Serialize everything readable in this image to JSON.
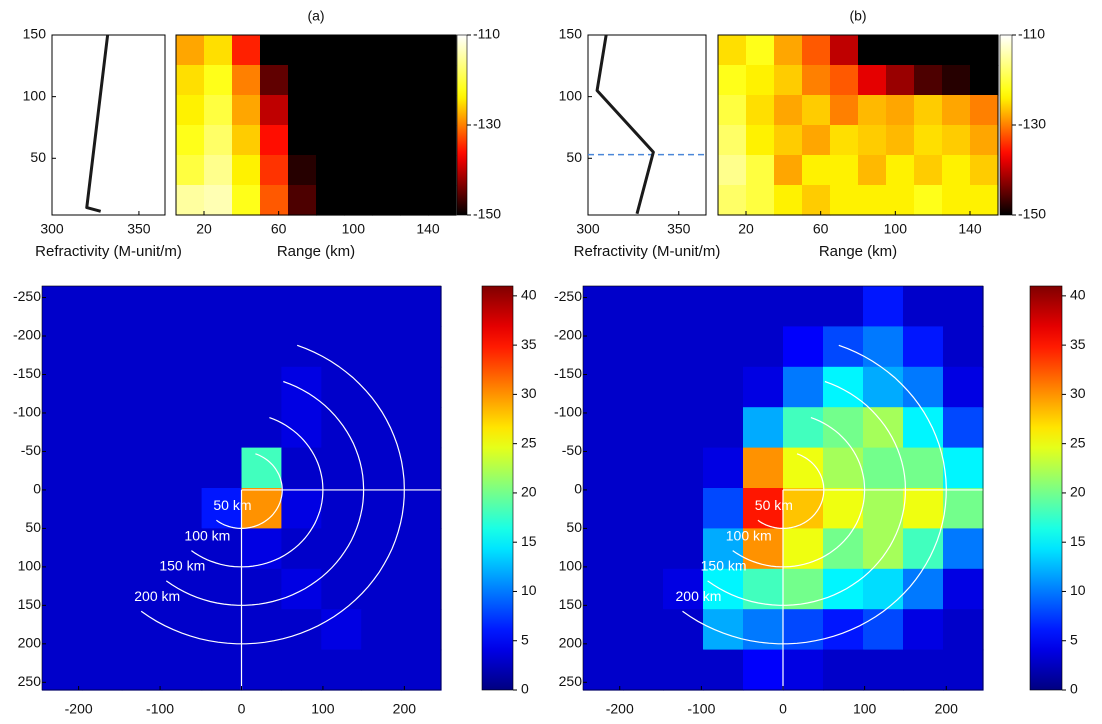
{
  "chart_data": [
    {
      "type": "line",
      "x": [
        332,
        320,
        328
      ],
      "values": [
        150,
        10,
        7
      ],
      "color": "#1a1a1a",
      "xlim": [
        300,
        365
      ],
      "xticks": [
        300,
        350
      ],
      "ylim": [
        4,
        150
      ],
      "yticks": [
        50,
        100,
        150
      ],
      "xlabel": "Refractivity (M-unit/m)"
    },
    {
      "type": "heatmap",
      "title": "(a)",
      "xlabel": "Range (km)",
      "xlim": [
        5,
        155
      ],
      "xticks": [
        20,
        60,
        100,
        140
      ],
      "ylim": [
        4,
        150
      ],
      "colormap": "hot",
      "clim": [
        -150,
        -110
      ],
      "cticks": [
        -110,
        -130,
        -150
      ],
      "z": [
        [
          -128,
          -125,
          -135,
          -150,
          -150,
          -150,
          -150,
          -150,
          -150,
          -150
        ],
        [
          -125,
          -122,
          -130,
          -145,
          -150,
          -150,
          -150,
          -150,
          -150,
          -150
        ],
        [
          -124,
          -120,
          -128,
          -140,
          -150,
          -150,
          -150,
          -150,
          -150,
          -150
        ],
        [
          -122,
          -118,
          -126,
          -136,
          -150,
          -150,
          -150,
          -150,
          -150,
          -150
        ],
        [
          -120,
          -116,
          -124,
          -134,
          -148,
          -150,
          -150,
          -150,
          -150,
          -150
        ],
        [
          -115,
          -114,
          -122,
          -132,
          -146,
          -150,
          -150,
          -150,
          -150,
          -150
        ]
      ]
    },
    {
      "type": "line",
      "x": [
        310,
        305,
        336,
        327
      ],
      "values": [
        150,
        105,
        55,
        5
      ],
      "color": "#1a1a1a",
      "hline": 53,
      "hline_color": "#4a86d8",
      "xlim": [
        300,
        365
      ],
      "xticks": [
        300,
        350
      ],
      "ylim": [
        4,
        150
      ],
      "yticks": [
        50,
        100,
        150
      ],
      "xlabel": "Refractivity (M-unit/m)"
    },
    {
      "type": "heatmap",
      "title": "(b)",
      "xlabel": "Range (km)",
      "xlim": [
        5,
        155
      ],
      "xticks": [
        20,
        60,
        100,
        140
      ],
      "ylim": [
        4,
        150
      ],
      "colormap": "hot",
      "clim": [
        -150,
        -110
      ],
      "cticks": [
        -110,
        -130,
        -150
      ],
      "z": [
        [
          -125,
          -122,
          -128,
          -132,
          -140,
          -150,
          -150,
          -150,
          -150,
          -150
        ],
        [
          -122,
          -124,
          -126,
          -130,
          -132,
          -138,
          -142,
          -146,
          -148,
          -150
        ],
        [
          -120,
          -125,
          -128,
          -126,
          -130,
          -127,
          -128,
          -126,
          -128,
          -130
        ],
        [
          -118,
          -124,
          -126,
          -128,
          -125,
          -126,
          -127,
          -125,
          -126,
          -128
        ],
        [
          -116,
          -120,
          -128,
          -124,
          -124,
          -127,
          -124,
          -126,
          -124,
          -126
        ],
        [
          -118,
          -120,
          -124,
          -126,
          -124,
          -124,
          -124,
          -122,
          -124,
          -124
        ]
      ]
    },
    {
      "type": "ppi",
      "xlim": [
        -245,
        245
      ],
      "xticks": [
        -200,
        -100,
        0,
        100,
        200
      ],
      "ylim": [
        -265,
        260
      ],
      "yticks": [
        -250,
        -200,
        -150,
        -100,
        -50,
        0,
        50,
        100,
        150,
        200,
        250
      ],
      "colormap": "jet",
      "clim": [
        0,
        41
      ],
      "cticks": [
        0,
        5,
        10,
        15,
        20,
        25,
        30,
        35,
        40
      ],
      "rings": [
        50,
        100,
        150,
        200
      ],
      "ring_labels": [
        "50 km",
        "100 km",
        "150 km",
        "200 km"
      ],
      "z": [
        [
          3,
          3,
          3,
          3,
          3,
          3,
          3,
          3,
          3,
          3
        ],
        [
          3,
          3,
          3,
          3,
          3,
          3,
          3,
          3,
          3,
          3
        ],
        [
          3,
          3,
          3,
          3,
          3,
          3,
          4,
          3,
          3,
          3
        ],
        [
          3,
          3,
          3,
          3,
          3,
          3,
          4,
          3,
          3,
          3
        ],
        [
          3,
          3,
          3,
          3,
          3,
          18,
          3,
          3,
          3,
          3
        ],
        [
          3,
          3,
          3,
          3,
          6,
          30,
          4,
          3,
          3,
          3
        ],
        [
          3,
          3,
          3,
          3,
          3,
          4,
          3,
          3,
          3,
          3
        ],
        [
          3,
          3,
          3,
          3,
          3,
          3,
          4,
          3,
          3,
          3
        ],
        [
          3,
          3,
          3,
          3,
          3,
          3,
          3,
          4,
          3,
          3
        ],
        [
          3,
          3,
          3,
          3,
          3,
          3,
          3,
          3,
          3,
          3
        ]
      ]
    },
    {
      "type": "ppi",
      "xlim": [
        -245,
        245
      ],
      "xticks": [
        -200,
        -100,
        0,
        100,
        200
      ],
      "ylim": [
        -265,
        260
      ],
      "yticks": [
        -250,
        -200,
        -150,
        -100,
        -50,
        0,
        50,
        100,
        150,
        200,
        250
      ],
      "colormap": "jet",
      "clim": [
        0,
        41
      ],
      "cticks": [
        0,
        5,
        10,
        15,
        20,
        25,
        30,
        35,
        40
      ],
      "rings": [
        50,
        100,
        150,
        200
      ],
      "ring_labels": [
        "50 km",
        "100 km",
        "150 km",
        "200 km"
      ],
      "z": [
        [
          3,
          3,
          3,
          3,
          3,
          3,
          3,
          6,
          3,
          3
        ],
        [
          3,
          3,
          3,
          3,
          3,
          5,
          8,
          10,
          6,
          3
        ],
        [
          3,
          3,
          3,
          3,
          4,
          10,
          15,
          12,
          10,
          4
        ],
        [
          3,
          3,
          3,
          3,
          12,
          18,
          20,
          22,
          15,
          8
        ],
        [
          3,
          3,
          3,
          4,
          30,
          25,
          22,
          20,
          20,
          15
        ],
        [
          3,
          3,
          3,
          8,
          35,
          28,
          25,
          22,
          25,
          20
        ],
        [
          3,
          3,
          3,
          12,
          30,
          25,
          20,
          22,
          18,
          10
        ],
        [
          3,
          3,
          4,
          15,
          18,
          20,
          15,
          14,
          10,
          4
        ],
        [
          3,
          3,
          3,
          12,
          10,
          8,
          6,
          8,
          4,
          3
        ],
        [
          3,
          3,
          3,
          3,
          5,
          4,
          3,
          3,
          3,
          3
        ]
      ]
    }
  ]
}
